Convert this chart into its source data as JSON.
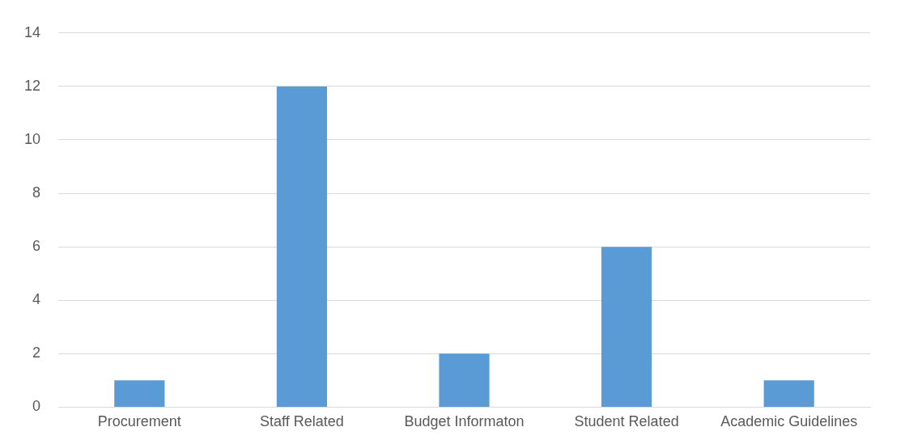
{
  "chart_data": {
    "type": "bar",
    "categories": [
      "Procurement",
      "Staff Related",
      "Budget Informaton",
      "Student Related",
      "Academic Guidelines"
    ],
    "values": [
      1,
      12,
      2,
      6,
      1
    ],
    "color": "#5b9bd5",
    "ylim": [
      0,
      14
    ],
    "yticks": [
      0,
      2,
      4,
      6,
      8,
      10,
      12,
      14
    ],
    "grid": "y",
    "legend": false
  }
}
